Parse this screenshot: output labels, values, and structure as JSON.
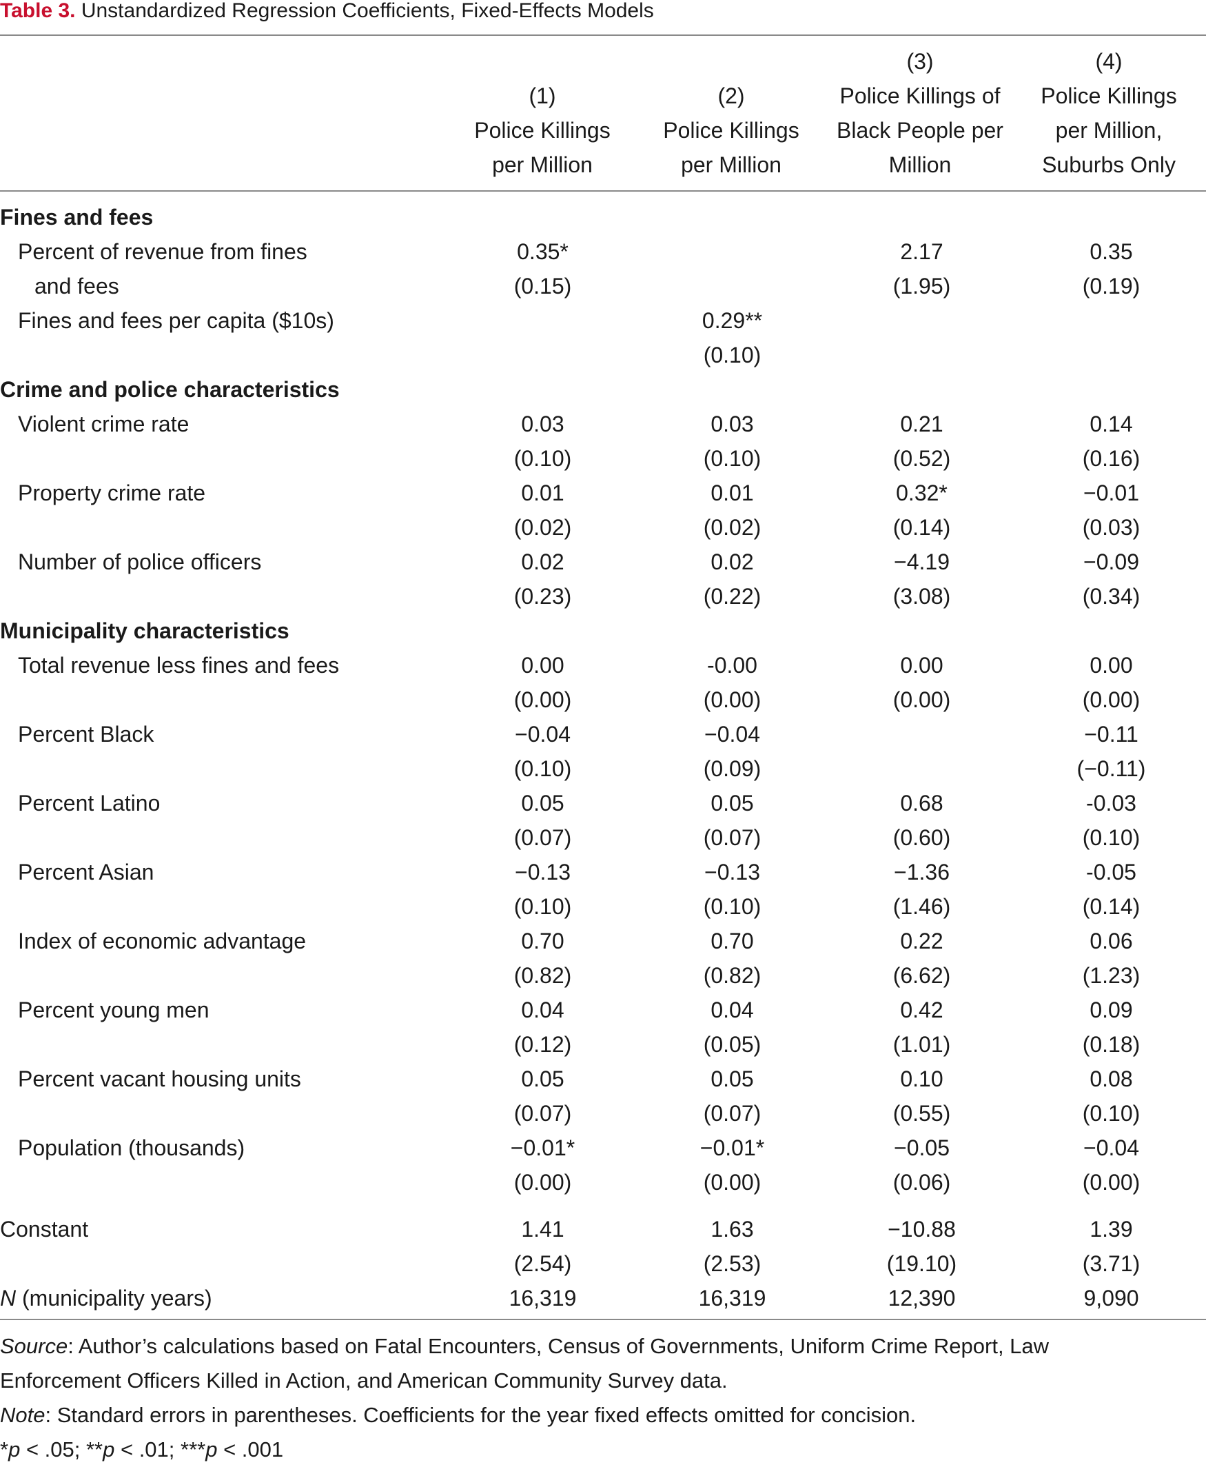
{
  "title": {
    "label": "Table 3.",
    "text": " Unstandardized Regression Coefficients, Fixed-Effects Models"
  },
  "columns": [
    {
      "lines": [
        "",
        "(1)",
        "Police Killings",
        "per Million"
      ]
    },
    {
      "lines": [
        "",
        "(2)",
        "Police Killings",
        "per Million"
      ]
    },
    {
      "lines": [
        "(3)",
        "Police Killings of",
        "Black People per",
        "Million"
      ]
    },
    {
      "lines": [
        "(4)",
        "Police Killings",
        "per Million,",
        "Suburbs Only"
      ]
    }
  ],
  "rows": [
    {
      "type": "section",
      "label": "Fines and fees"
    },
    {
      "type": "var",
      "label": "Percent of revenue from fines",
      "values": [
        "0.35*",
        "",
        "2.17",
        "0.35"
      ]
    },
    {
      "type": "var2",
      "label": "and fees",
      "values": [
        "(0.15)",
        "",
        "(1.95)",
        "(0.19)"
      ]
    },
    {
      "type": "var",
      "label": "Fines and fees per capita ($10s)",
      "values": [
        "",
        "0.29**",
        "",
        ""
      ]
    },
    {
      "type": "se",
      "label": "",
      "values": [
        "",
        "(0.10)",
        "",
        ""
      ]
    },
    {
      "type": "section",
      "label": "Crime and police characteristics"
    },
    {
      "type": "var",
      "label": "Violent crime rate",
      "values": [
        "0.03",
        "0.03",
        "0.21",
        "0.14"
      ]
    },
    {
      "type": "se",
      "label": "",
      "values": [
        "(0.10)",
        "(0.10)",
        "(0.52)",
        "(0.16)"
      ]
    },
    {
      "type": "var",
      "label": "Property crime rate",
      "values": [
        "0.01",
        "0.01",
        "0.32*",
        "−0.01"
      ]
    },
    {
      "type": "se",
      "label": "",
      "values": [
        "(0.02)",
        "(0.02)",
        "(0.14)",
        "(0.03)"
      ]
    },
    {
      "type": "var",
      "label": "Number of police officers",
      "values": [
        "0.02",
        "0.02",
        "−4.19",
        "−0.09"
      ]
    },
    {
      "type": "se",
      "label": "",
      "values": [
        "(0.23)",
        "(0.22)",
        "(3.08)",
        "(0.34)"
      ]
    },
    {
      "type": "section",
      "label": "Municipality characteristics"
    },
    {
      "type": "var",
      "label": "Total revenue less fines and fees",
      "values": [
        "0.00",
        "-0.00",
        "0.00",
        "0.00"
      ]
    },
    {
      "type": "se",
      "label": "",
      "values": [
        "(0.00)",
        "(0.00)",
        "(0.00)",
        "(0.00)"
      ]
    },
    {
      "type": "var",
      "label": "Percent Black",
      "values": [
        "−0.04",
        "−0.04",
        "",
        "−0.11"
      ]
    },
    {
      "type": "se",
      "label": "",
      "values": [
        "(0.10)",
        "(0.09)",
        "",
        "(−0.11)"
      ]
    },
    {
      "type": "var",
      "label": "Percent Latino",
      "values": [
        "0.05",
        "0.05",
        "0.68",
        "-0.03"
      ]
    },
    {
      "type": "se",
      "label": "",
      "values": [
        "(0.07)",
        "(0.07)",
        "(0.60)",
        "(0.10)"
      ]
    },
    {
      "type": "var",
      "label": "Percent Asian",
      "values": [
        "−0.13",
        "−0.13",
        "−1.36",
        "-0.05"
      ]
    },
    {
      "type": "se",
      "label": "",
      "values": [
        "(0.10)",
        "(0.10)",
        "(1.46)",
        "(0.14)"
      ]
    },
    {
      "type": "var",
      "label": "Index of economic advantage",
      "values": [
        "0.70",
        "0.70",
        "0.22",
        "0.06"
      ]
    },
    {
      "type": "se",
      "label": "",
      "values": [
        "(0.82)",
        "(0.82)",
        "(6.62)",
        "(1.23)"
      ]
    },
    {
      "type": "var",
      "label": "Percent young men",
      "values": [
        "0.04",
        "0.04",
        "0.42",
        "0.09"
      ]
    },
    {
      "type": "se",
      "label": "",
      "values": [
        "(0.12)",
        "(0.05)",
        "(1.01)",
        "(0.18)"
      ]
    },
    {
      "type": "var",
      "label": "Percent vacant housing units",
      "values": [
        "0.05",
        "0.05",
        "0.10",
        "0.08"
      ]
    },
    {
      "type": "se",
      "label": "",
      "values": [
        "(0.07)",
        "(0.07)",
        "(0.55)",
        "(0.10)"
      ]
    },
    {
      "type": "var",
      "label": "Population (thousands)",
      "values": [
        "−0.01*",
        "−0.01*",
        "−0.05",
        "−0.04"
      ]
    },
    {
      "type": "se",
      "label": "",
      "values": [
        "(0.00)",
        "(0.00)",
        "(0.06)",
        "(0.00)"
      ]
    },
    {
      "type": "gap"
    },
    {
      "type": "plain",
      "label": "Constant",
      "values": [
        "1.41",
        "1.63",
        "−10.88",
        "1.39"
      ]
    },
    {
      "type": "se",
      "label": "",
      "values": [
        "(2.54)",
        "(2.53)",
        "(19.10)",
        "(3.71)"
      ]
    },
    {
      "type": "n",
      "label_italic": "N",
      "label_rest": " (municipality years)",
      "values": [
        "16,319",
        "16,319",
        "12,390",
        "9,090"
      ]
    }
  ],
  "notes": {
    "source_label": "Source",
    "source_text": ": Author’s calculations based on Fatal Encounters, Census of Governments, Uniform Crime Report, Law",
    "source_text2": "Enforcement Officers Killed in Action, and American Community Survey data.",
    "note_label": "Note",
    "note_text": ": Standard errors in parentheses. Coefficients for the year fixed effects omitted for concision.",
    "sig": [
      "*",
      "p",
      " < .05; **",
      "p",
      " < .01; ***",
      "p",
      " < .001"
    ]
  }
}
